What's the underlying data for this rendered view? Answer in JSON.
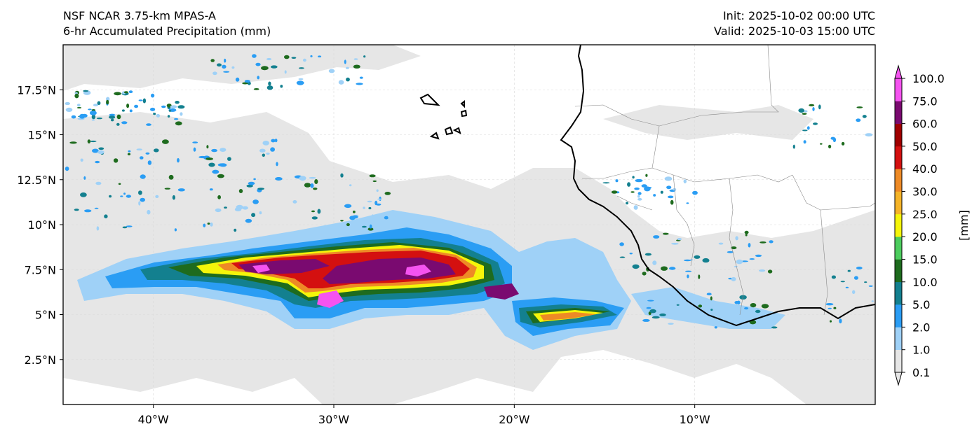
{
  "header": {
    "title_left_1": "NSF NCAR 3.75-km MPAS-A",
    "title_left_2": "6-hr Accumulated Precipitation (mm)",
    "title_right_1": "Init: 2025-10-02 00:00 UTC",
    "title_right_2": "Valid: 2025-10-03 15:00 UTC"
  },
  "map": {
    "lon_range": [
      -45,
      0
    ],
    "lat_range": [
      0,
      20
    ],
    "lon_ticks": [
      {
        "value": -40,
        "label": "40°W"
      },
      {
        "value": -30,
        "label": "30°W"
      },
      {
        "value": -20,
        "label": "20°W"
      },
      {
        "value": -10,
        "label": "10°W"
      }
    ],
    "lat_ticks": [
      {
        "value": 2.5,
        "label": "2.5°N"
      },
      {
        "value": 5,
        "label": "5°N"
      },
      {
        "value": 7.5,
        "label": "7.5°N"
      },
      {
        "value": 10,
        "label": "10°N"
      },
      {
        "value": 12.5,
        "label": "12.5°N"
      },
      {
        "value": 15,
        "label": "15°N"
      },
      {
        "value": 17.5,
        "label": "17.5°N"
      }
    ],
    "grid": true
  },
  "colorbar": {
    "unit_label": "[mm]",
    "levels": [
      "0.1",
      "1.0",
      "2.0",
      "5.0",
      "10.0",
      "15.0",
      "20.0",
      "25.0",
      "30.0",
      "40.0",
      "50.0",
      "60.0",
      "75.0",
      "100.0"
    ],
    "colors": [
      "#e6e6e6",
      "#9fd1f7",
      "#2a9df4",
      "#13808f",
      "#1e6b1e",
      "#4ccd5e",
      "#f5f50a",
      "#f5b428",
      "#ee8a26",
      "#d41010",
      "#a00000",
      "#7a0a70",
      "#f553f0"
    ],
    "extend": "both"
  }
}
